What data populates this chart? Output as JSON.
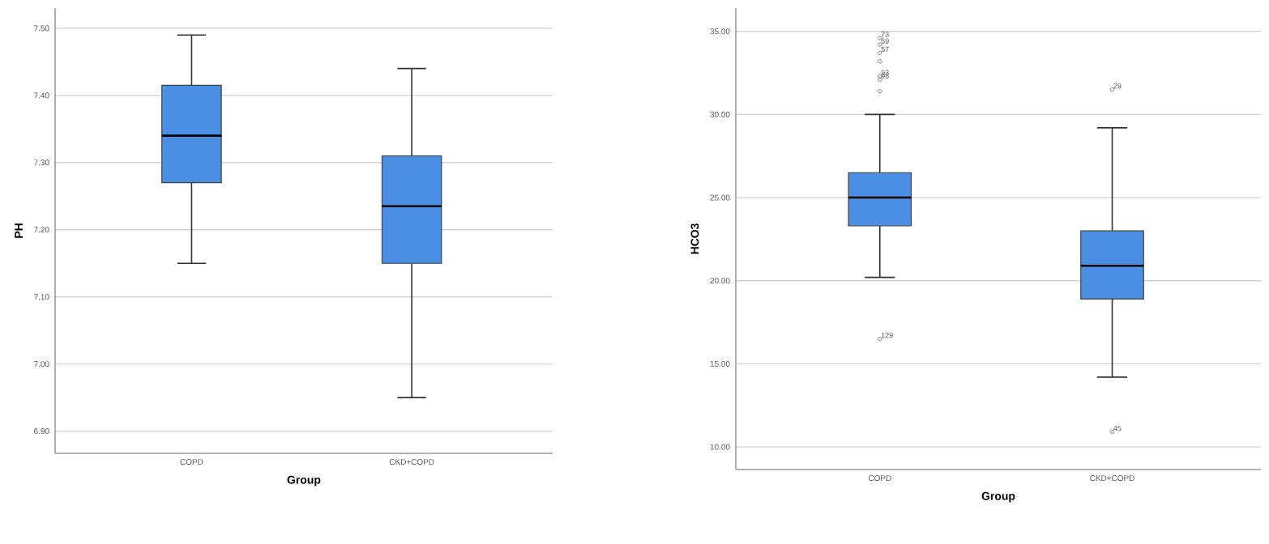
{
  "chart_data": [
    {
      "type": "box",
      "xlabel": "Group",
      "ylabel": "PH",
      "categories": [
        "COPD",
        "CKD+COPD"
      ],
      "color": "#4a8fe3",
      "grid": "y",
      "ylim": [
        6.867,
        7.53
      ],
      "yticks": [
        {
          "value": 6.9,
          "label": "6.90"
        },
        {
          "value": 7.0,
          "label": "7.00"
        },
        {
          "value": 7.1,
          "label": "7.10"
        },
        {
          "value": 7.2,
          "label": "7.20"
        },
        {
          "value": 7.3,
          "label": "7.30"
        },
        {
          "value": 7.4,
          "label": "7.40"
        },
        {
          "value": 7.5,
          "label": "7.50"
        }
      ],
      "boxes": [
        {
          "low": 7.15,
          "q1": 7.27,
          "median": 7.34,
          "q3": 7.415,
          "high": 7.49
        },
        {
          "low": 6.95,
          "q1": 7.15,
          "median": 7.235,
          "q3": 7.31,
          "high": 7.44
        }
      ]
    },
    {
      "type": "box",
      "xlabel": "Group",
      "ylabel": "HCO3",
      "categories": [
        "COPD",
        "CKD+COPD"
      ],
      "color": "#4a8fe3",
      "grid": "y",
      "ylim": [
        8.64,
        36.4
      ],
      "yticks": [
        {
          "value": 10,
          "label": "10.00"
        },
        {
          "value": 15,
          "label": "15.00"
        },
        {
          "value": 20,
          "label": "20.00"
        },
        {
          "value": 25,
          "label": "25.00"
        },
        {
          "value": 30,
          "label": "30.00"
        },
        {
          "value": 35,
          "label": "35.00"
        }
      ],
      "boxes": [
        {
          "low": 20.2,
          "q1": 23.3,
          "median": 25.0,
          "q3": 26.5,
          "high": 30.0,
          "outliers": [
            34.6,
            34.2,
            33.7,
            33.2,
            32.3,
            32.1,
            31.4,
            16.5
          ]
        },
        {
          "low": 14.2,
          "q1": 18.9,
          "median": 20.9,
          "q3": 23.0,
          "high": 29.2,
          "outliers": [
            31.5,
            10.9
          ]
        }
      ],
      "annotations": [
        "73",
        "69",
        "57",
        "93",
        "98",
        "129",
        "29",
        "45"
      ]
    }
  ]
}
